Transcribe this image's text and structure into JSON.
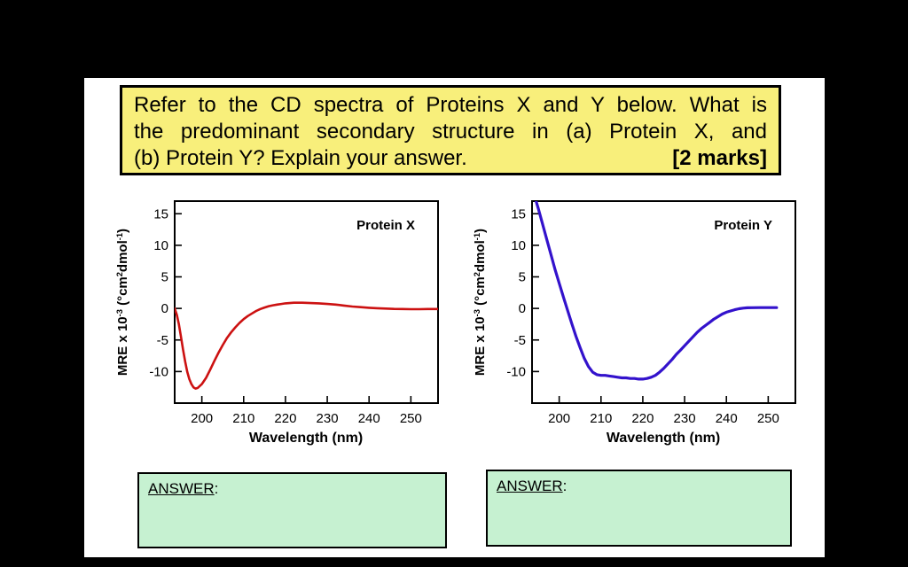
{
  "page": {
    "bg": "#000000",
    "sheet_bg": "#ffffff"
  },
  "question_box": {
    "bg": "#f8ef7b",
    "lines": [
      "Refer to the CD spectra of Proteins X and Y below. What is",
      "the predominant secondary structure in (a) Protein X, and",
      "(b) Protein Y?  Explain your answer."
    ],
    "marks": "[2 marks]"
  },
  "answer_boxes": [
    {
      "label": "ANSWER",
      "suffix": ":"
    },
    {
      "label": "ANSWER",
      "suffix": ":"
    }
  ],
  "chart_data": [
    {
      "type": "line",
      "title": "Protein X",
      "xlabel": "Wavelength (nm)",
      "ylabel_parts": [
        {
          "t": "MRE x 10"
        },
        {
          "t": "-3",
          "sup": true
        },
        {
          "t": " (°cm"
        },
        {
          "t": "2",
          "sup": true
        },
        {
          "t": "dmol"
        },
        {
          "t": "-1",
          "sup": true
        },
        {
          "t": ")"
        }
      ],
      "color": "#cc1111",
      "stroke_width": 2.6,
      "xlim": [
        193.5,
        256.5
      ],
      "ylim": [
        -15,
        17
      ],
      "x_ticks": [
        200,
        210,
        220,
        230,
        240,
        250
      ],
      "y_ticks": [
        15,
        10,
        5,
        0,
        -5,
        -10
      ],
      "grid": false,
      "points": [
        [
          193.5,
          0
        ],
        [
          194,
          -1
        ],
        [
          194.5,
          -2.5
        ],
        [
          195,
          -4.5
        ],
        [
          195.5,
          -6.5
        ],
        [
          196,
          -8.4
        ],
        [
          196.5,
          -10
        ],
        [
          197,
          -11.2
        ],
        [
          197.5,
          -12
        ],
        [
          198,
          -12.5
        ],
        [
          198.5,
          -12.7
        ],
        [
          199,
          -12.6
        ],
        [
          200,
          -12
        ],
        [
          201,
          -11
        ],
        [
          202,
          -9.7
        ],
        [
          203,
          -8.3
        ],
        [
          204,
          -7
        ],
        [
          205,
          -5.8
        ],
        [
          206,
          -4.7
        ],
        [
          207,
          -3.8
        ],
        [
          208,
          -3
        ],
        [
          209,
          -2.3
        ],
        [
          210,
          -1.7
        ],
        [
          211,
          -1.2
        ],
        [
          212,
          -0.8
        ],
        [
          213,
          -0.4
        ],
        [
          214,
          -0.1
        ],
        [
          215,
          0.15
        ],
        [
          216,
          0.35
        ],
        [
          217,
          0.5
        ],
        [
          218,
          0.6
        ],
        [
          219,
          0.7
        ],
        [
          220,
          0.8
        ],
        [
          222,
          0.9
        ],
        [
          224,
          0.9
        ],
        [
          226,
          0.85
        ],
        [
          228,
          0.8
        ],
        [
          230,
          0.7
        ],
        [
          232,
          0.6
        ],
        [
          234,
          0.45
        ],
        [
          236,
          0.3
        ],
        [
          238,
          0.2
        ],
        [
          240,
          0.1
        ],
        [
          242,
          0.03
        ],
        [
          244,
          -0.03
        ],
        [
          246,
          -0.08
        ],
        [
          248,
          -0.1
        ],
        [
          250,
          -0.12
        ],
        [
          252,
          -0.12
        ],
        [
          254,
          -0.1
        ],
        [
          256.5,
          -0.1
        ]
      ]
    },
    {
      "type": "line",
      "title": "Protein Y",
      "xlabel": "Wavelength (nm)",
      "ylabel_parts": [
        {
          "t": "MRE x 10"
        },
        {
          "t": "-3",
          "sup": true
        },
        {
          "t": " (°cm"
        },
        {
          "t": "2",
          "sup": true
        },
        {
          "t": "dmol"
        },
        {
          "t": "-1",
          "sup": true
        },
        {
          "t": ")"
        }
      ],
      "color": "#3312cc",
      "stroke_width": 3.2,
      "xlim": [
        193.5,
        256.5
      ],
      "ylim": [
        -15,
        17
      ],
      "x_ticks": [
        200,
        210,
        220,
        230,
        240,
        250
      ],
      "y_ticks": [
        15,
        10,
        5,
        0,
        -5,
        -10
      ],
      "grid": false,
      "points": [
        [
          194,
          18
        ],
        [
          195,
          15.8
        ],
        [
          196,
          13.4
        ],
        [
          197,
          11
        ],
        [
          198,
          8.6
        ],
        [
          199,
          6.2
        ],
        [
          200,
          4
        ],
        [
          201,
          1.8
        ],
        [
          202,
          -0.3
        ],
        [
          203,
          -2.4
        ],
        [
          204,
          -4.4
        ],
        [
          205,
          -6.2
        ],
        [
          206,
          -7.9
        ],
        [
          207,
          -9.2
        ],
        [
          208,
          -10.1
        ],
        [
          209,
          -10.5
        ],
        [
          210,
          -10.6
        ],
        [
          211,
          -10.6
        ],
        [
          212,
          -10.7
        ],
        [
          213,
          -10.8
        ],
        [
          214,
          -10.9
        ],
        [
          215,
          -11
        ],
        [
          216,
          -11
        ],
        [
          217,
          -11.1
        ],
        [
          218,
          -11.1
        ],
        [
          219,
          -11.2
        ],
        [
          220,
          -11.2
        ],
        [
          221,
          -11.1
        ],
        [
          222,
          -10.9
        ],
        [
          223,
          -10.6
        ],
        [
          224,
          -10.1
        ],
        [
          225,
          -9.5
        ],
        [
          226,
          -8.8
        ],
        [
          227,
          -8.1
        ],
        [
          228,
          -7.3
        ],
        [
          229,
          -6.6
        ],
        [
          230,
          -5.9
        ],
        [
          231,
          -5.2
        ],
        [
          232,
          -4.5
        ],
        [
          233,
          -3.8
        ],
        [
          234,
          -3.2
        ],
        [
          235,
          -2.7
        ],
        [
          236,
          -2.2
        ],
        [
          237,
          -1.7
        ],
        [
          238,
          -1.3
        ],
        [
          239,
          -0.9
        ],
        [
          240,
          -0.6
        ],
        [
          241,
          -0.4
        ],
        [
          242,
          -0.2
        ],
        [
          243,
          -0.05
        ],
        [
          244,
          0.05
        ],
        [
          245,
          0.1
        ],
        [
          246,
          0.12
        ],
        [
          248,
          0.13
        ],
        [
          250,
          0.13
        ],
        [
          252,
          0.13
        ]
      ]
    }
  ]
}
